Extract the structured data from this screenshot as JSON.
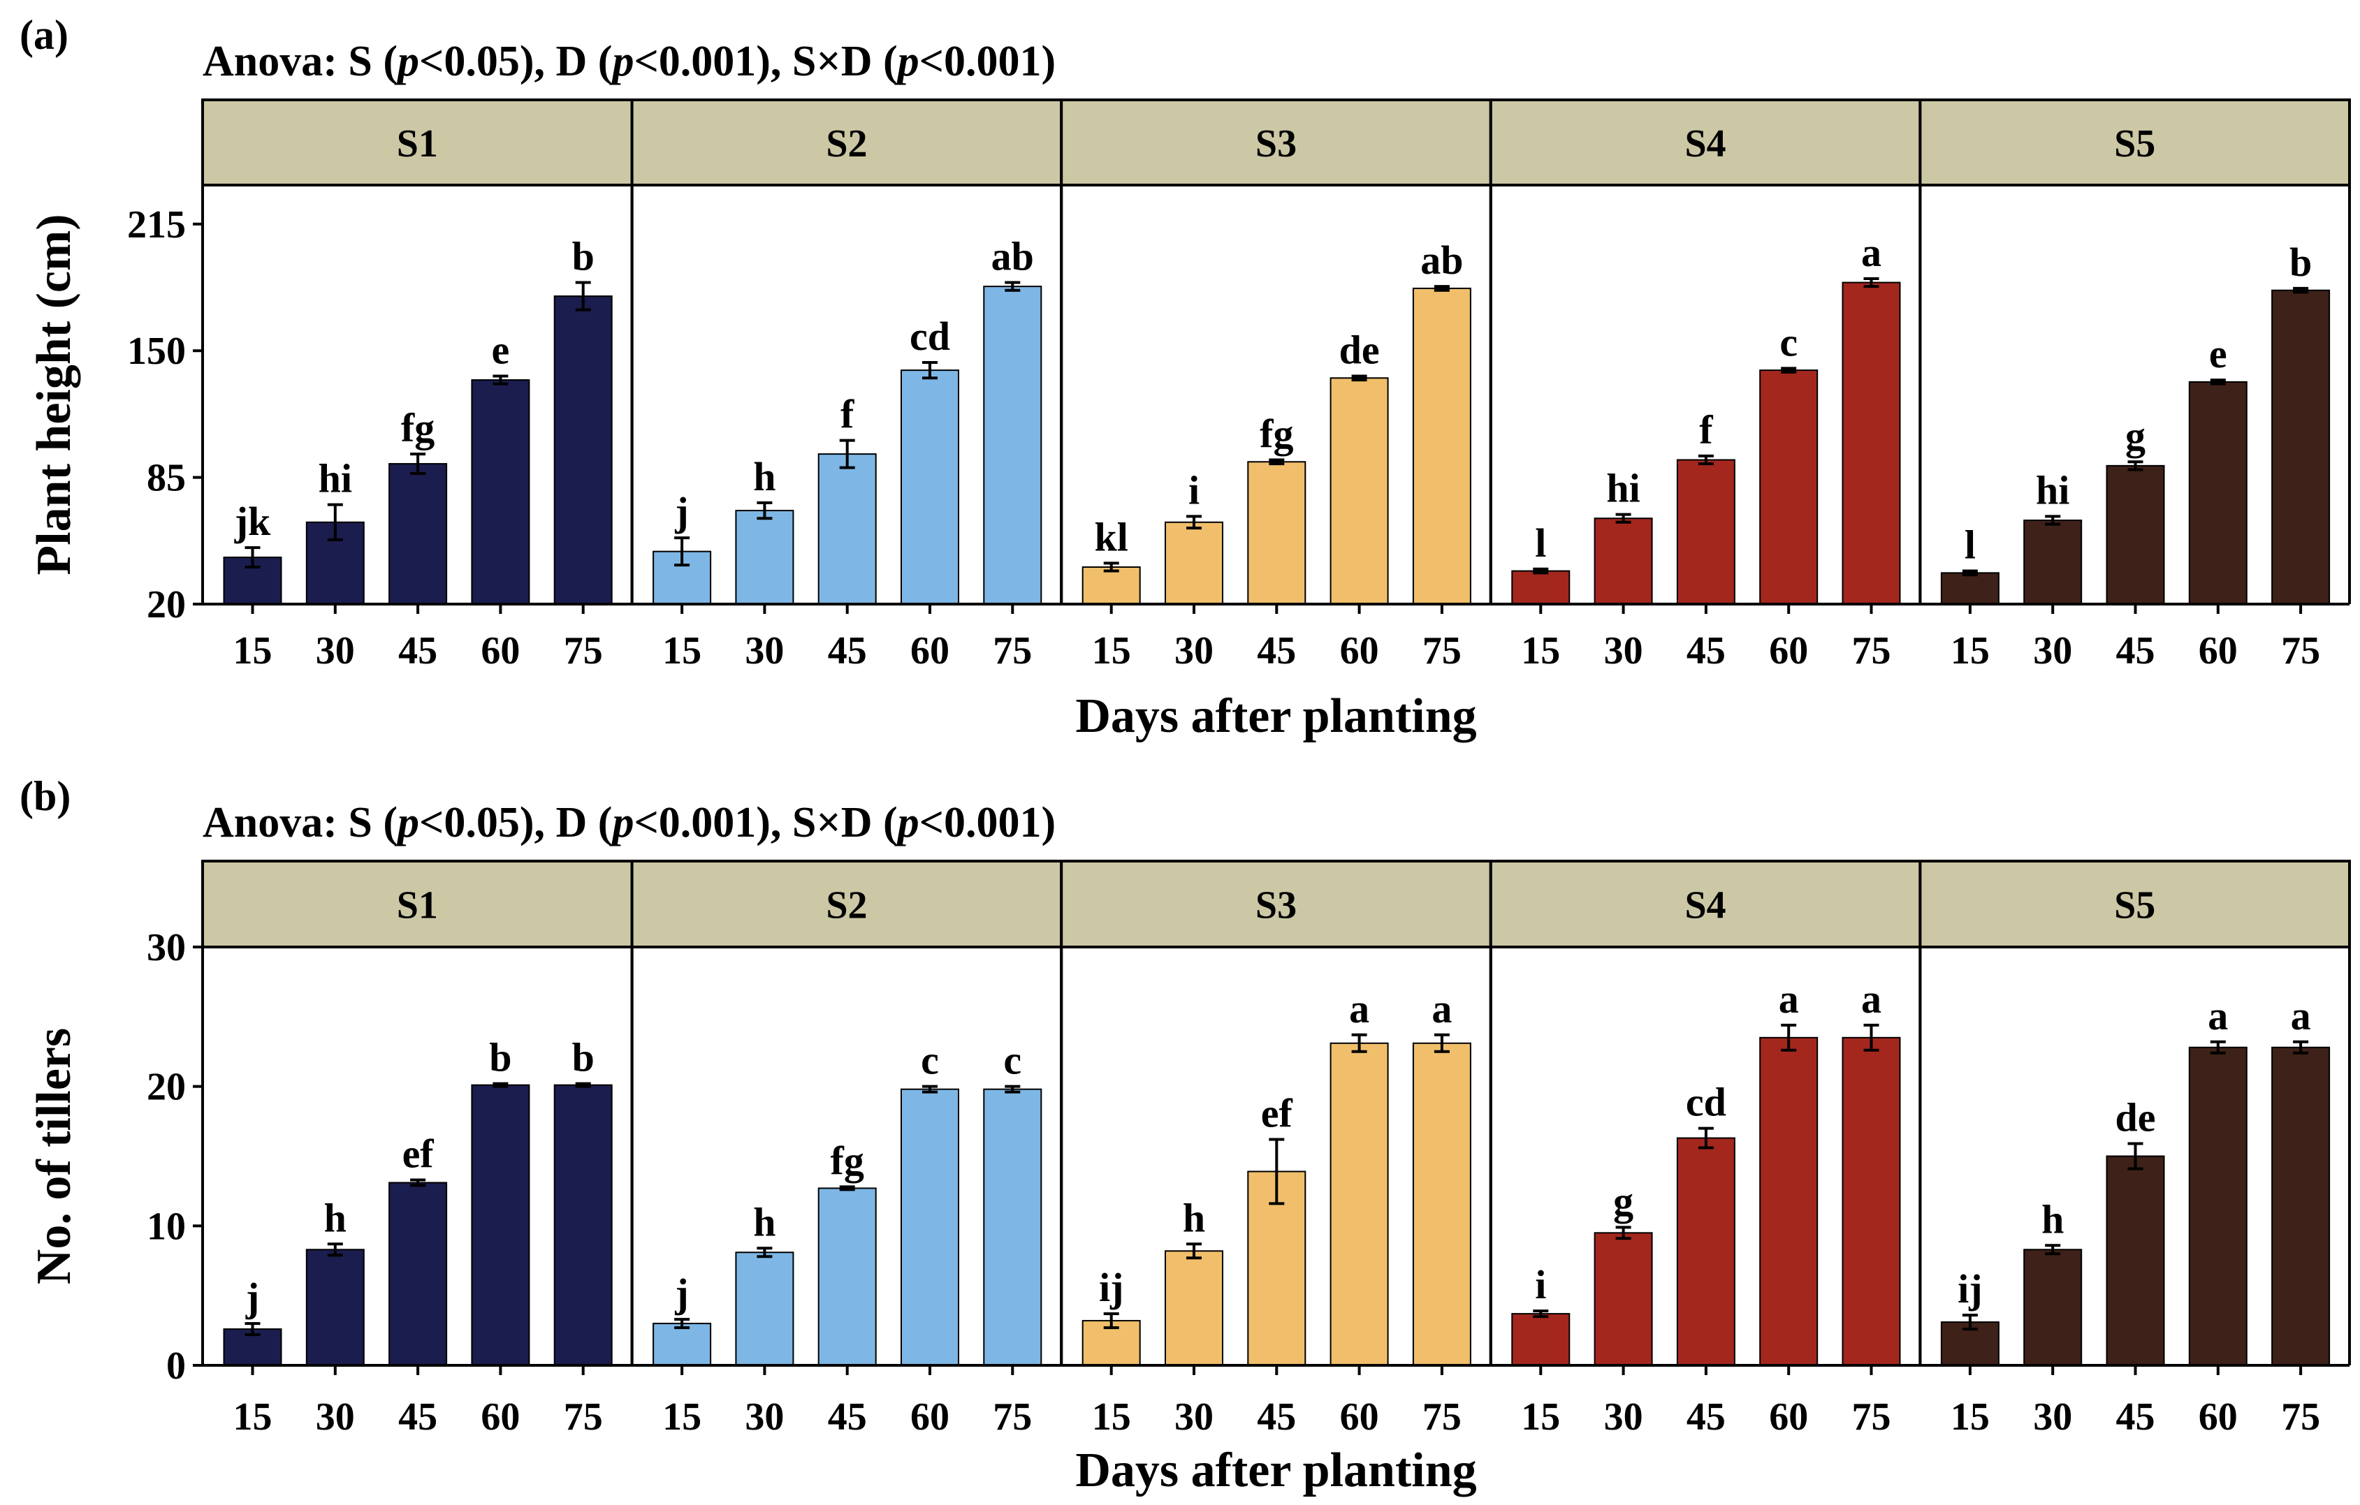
{
  "colors": {
    "strip_bg": "#CCC8A5",
    "S1": "#1B1D4E",
    "S2": "#7EB7E5",
    "S3": "#F1BF6C",
    "S4": "#A4271E",
    "S5": "#3E2118"
  },
  "chart_data": [
    {
      "type": "bar",
      "panel_label": "(a)",
      "title": "Anova: S (p<0.05), D (p<0.001), S×D (p<0.001)",
      "title_parts": [
        {
          "text": "Anova: S (",
          "italic": false
        },
        {
          "text": "p",
          "italic": true
        },
        {
          "text": "<0.05), D (",
          "italic": false
        },
        {
          "text": "p",
          "italic": true
        },
        {
          "text": "<0.001), S×D (",
          "italic": false
        },
        {
          "text": "p",
          "italic": true
        },
        {
          "text": "<0.001)",
          "italic": false
        }
      ],
      "xlabel": "Days after planting",
      "ylabel": "Plant height (cm)",
      "ylim": [
        20,
        235
      ],
      "yticks": [
        20,
        85,
        150,
        215
      ],
      "categories": [
        "15",
        "30",
        "45",
        "60",
        "75"
      ],
      "facets": [
        {
          "name": "S1",
          "values": [
            44,
            62,
            92,
            135,
            178
          ],
          "errors": [
            5,
            9,
            5,
            2,
            7
          ],
          "letters": [
            "jk",
            "hi",
            "fg",
            "e",
            "b"
          ]
        },
        {
          "name": "S2",
          "values": [
            47,
            68,
            97,
            140,
            183
          ],
          "errors": [
            7,
            4,
            7,
            4,
            2
          ],
          "letters": [
            "j",
            "h",
            "f",
            "cd",
            "ab"
          ]
        },
        {
          "name": "S3",
          "values": [
            39,
            62,
            93,
            136,
            182
          ],
          "errors": [
            2,
            3,
            1,
            1,
            1
          ],
          "letters": [
            "kl",
            "i",
            "fg",
            "de",
            "ab"
          ]
        },
        {
          "name": "S4",
          "values": [
            37,
            64,
            94,
            140,
            185
          ],
          "errors": [
            1,
            2,
            2,
            1,
            2
          ],
          "letters": [
            "l",
            "hi",
            "f",
            "c",
            "a"
          ]
        },
        {
          "name": "S5",
          "values": [
            36,
            63,
            91,
            134,
            181
          ],
          "errors": [
            1,
            2,
            2,
            1,
            1
          ],
          "letters": [
            "l",
            "hi",
            "g",
            "e",
            "b"
          ]
        }
      ]
    },
    {
      "type": "bar",
      "panel_label": "(b)",
      "title": "Anova: S (p<0.05), D (p<0.001), S×D (p<0.001)",
      "title_parts": [
        {
          "text": "Anova: S (",
          "italic": false
        },
        {
          "text": "p",
          "italic": true
        },
        {
          "text": "<0.05), D (",
          "italic": false
        },
        {
          "text": "p",
          "italic": true
        },
        {
          "text": "<0.001), S×D (",
          "italic": false
        },
        {
          "text": "p",
          "italic": true
        },
        {
          "text": "<0.001)",
          "italic": false
        }
      ],
      "xlabel": "Days after planting",
      "ylabel": "No. of tillers",
      "ylim": [
        0,
        30
      ],
      "yticks": [
        0,
        10,
        20,
        30
      ],
      "categories": [
        "15",
        "30",
        "45",
        "60",
        "75"
      ],
      "facets": [
        {
          "name": "S1",
          "values": [
            2.6,
            8.3,
            13.1,
            20.1,
            20.1
          ],
          "errors": [
            0.4,
            0.4,
            0.2,
            0.1,
            0.1
          ],
          "letters": [
            "j",
            "h",
            "ef",
            "b",
            "b"
          ]
        },
        {
          "name": "S2",
          "values": [
            3.0,
            8.1,
            12.7,
            19.8,
            19.8
          ],
          "errors": [
            0.3,
            0.3,
            0.1,
            0.2,
            0.2
          ],
          "letters": [
            "j",
            "h",
            "fg",
            "c",
            "c"
          ]
        },
        {
          "name": "S3",
          "values": [
            3.2,
            8.2,
            13.9,
            23.1,
            23.1
          ],
          "errors": [
            0.5,
            0.5,
            2.3,
            0.6,
            0.6
          ],
          "letters": [
            "ij",
            "h",
            "ef",
            "a",
            "a"
          ]
        },
        {
          "name": "S4",
          "values": [
            3.7,
            9.5,
            16.3,
            23.5,
            23.5
          ],
          "errors": [
            0.2,
            0.4,
            0.7,
            0.9,
            0.9
          ],
          "letters": [
            "i",
            "g",
            "cd",
            "a",
            "a"
          ]
        },
        {
          "name": "S5",
          "values": [
            3.1,
            8.3,
            15.0,
            22.8,
            22.8
          ],
          "errors": [
            0.5,
            0.3,
            0.9,
            0.4,
            0.4
          ],
          "letters": [
            "ij",
            "h",
            "de",
            "a",
            "a"
          ]
        }
      ]
    }
  ]
}
